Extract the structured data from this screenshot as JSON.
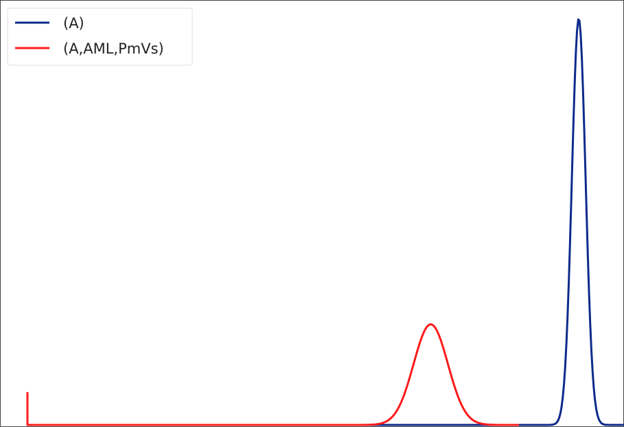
{
  "chart_data": {
    "type": "line",
    "title": "",
    "xlabel": "",
    "ylabel": "",
    "x_range": [
      0,
      1
    ],
    "y_range": [
      0,
      1
    ],
    "grid": false,
    "legend_position": "top-left",
    "series": [
      {
        "name": "(A)",
        "color": "#0d2a8a",
        "shape": "gaussian",
        "peak_x": 0.922,
        "peak_y": 0.99,
        "width": 0.0115,
        "x_start": 0.0,
        "x_end": 0.997
      },
      {
        "name": "(A,AML,PmVs)",
        "color": "#ff1a1a",
        "shape": "gaussian",
        "peak_x": 0.6745,
        "peak_y": 0.245,
        "width": 0.0287,
        "x_start": 0.0,
        "x_end": 0.822,
        "start_spike_y": 0.08
      }
    ]
  }
}
